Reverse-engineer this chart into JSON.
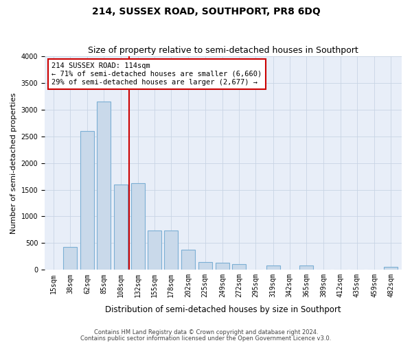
{
  "title": "214, SUSSEX ROAD, SOUTHPORT, PR8 6DQ",
  "subtitle": "Size of property relative to semi-detached houses in Southport",
  "xlabel": "Distribution of semi-detached houses by size in Southport",
  "ylabel": "Number of semi-detached properties",
  "footer1": "Contains HM Land Registry data © Crown copyright and database right 2024.",
  "footer2": "Contains public sector information licensed under the Open Government Licence v3.0.",
  "annotation_title": "214 SUSSEX ROAD: 114sqm",
  "annotation_line1": "← 71% of semi-detached houses are smaller (6,660)",
  "annotation_line2": "29% of semi-detached houses are larger (2,677) →",
  "property_size": 114,
  "categories": [
    15,
    38,
    62,
    85,
    108,
    132,
    155,
    178,
    202,
    225,
    249,
    272,
    295,
    319,
    342,
    365,
    389,
    412,
    435,
    459,
    482
  ],
  "values": [
    8,
    430,
    2600,
    3150,
    1600,
    1620,
    730,
    730,
    370,
    150,
    130,
    110,
    0,
    80,
    0,
    80,
    0,
    0,
    0,
    0,
    50
  ],
  "bar_color": "#c9d9ea",
  "bar_edge_color": "#7bafd4",
  "vline_color": "#cc0000",
  "vline_x": 120,
  "ylim": [
    0,
    4000
  ],
  "yticks": [
    0,
    500,
    1000,
    1500,
    2000,
    2500,
    3000,
    3500,
    4000
  ],
  "grid_color": "#c8d4e4",
  "bg_color": "#e8eef8",
  "annotation_box_color": "#ffffff",
  "annotation_box_edge": "#cc0000",
  "title_fontsize": 10,
  "subtitle_fontsize": 9,
  "tick_fontsize": 7,
  "ylabel_fontsize": 8,
  "xlabel_fontsize": 8.5,
  "annotation_fontsize": 7.5,
  "footer_fontsize": 6
}
